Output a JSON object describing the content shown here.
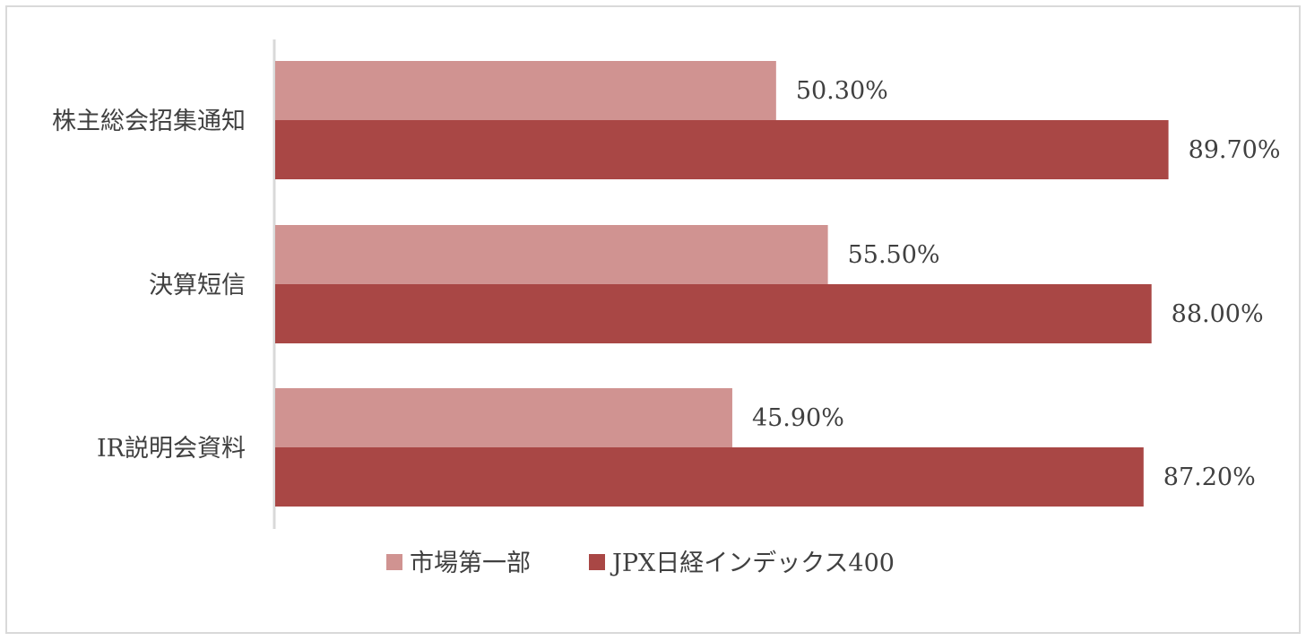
{
  "chart_data": {
    "type": "bar",
    "orientation": "horizontal",
    "categories": [
      "株主総会招集通知",
      "決算短信",
      "IR説明会資料"
    ],
    "series": [
      {
        "name": "市場第一部",
        "values": [
          50.3,
          55.5,
          45.9
        ],
        "labels": [
          "50.30%",
          "55.50%",
          "45.90%"
        ],
        "color": "#d09391"
      },
      {
        "name": "JPX日経インデックス400",
        "values": [
          89.7,
          88.0,
          87.2
        ],
        "labels": [
          "89.70%",
          "88.00%",
          "87.20%"
        ],
        "color": "#a94745"
      }
    ],
    "xlim": [
      0,
      100
    ],
    "grid": false,
    "legend": "bottom",
    "axis_color": "#d9d9d9",
    "text_color": "#404040"
  }
}
